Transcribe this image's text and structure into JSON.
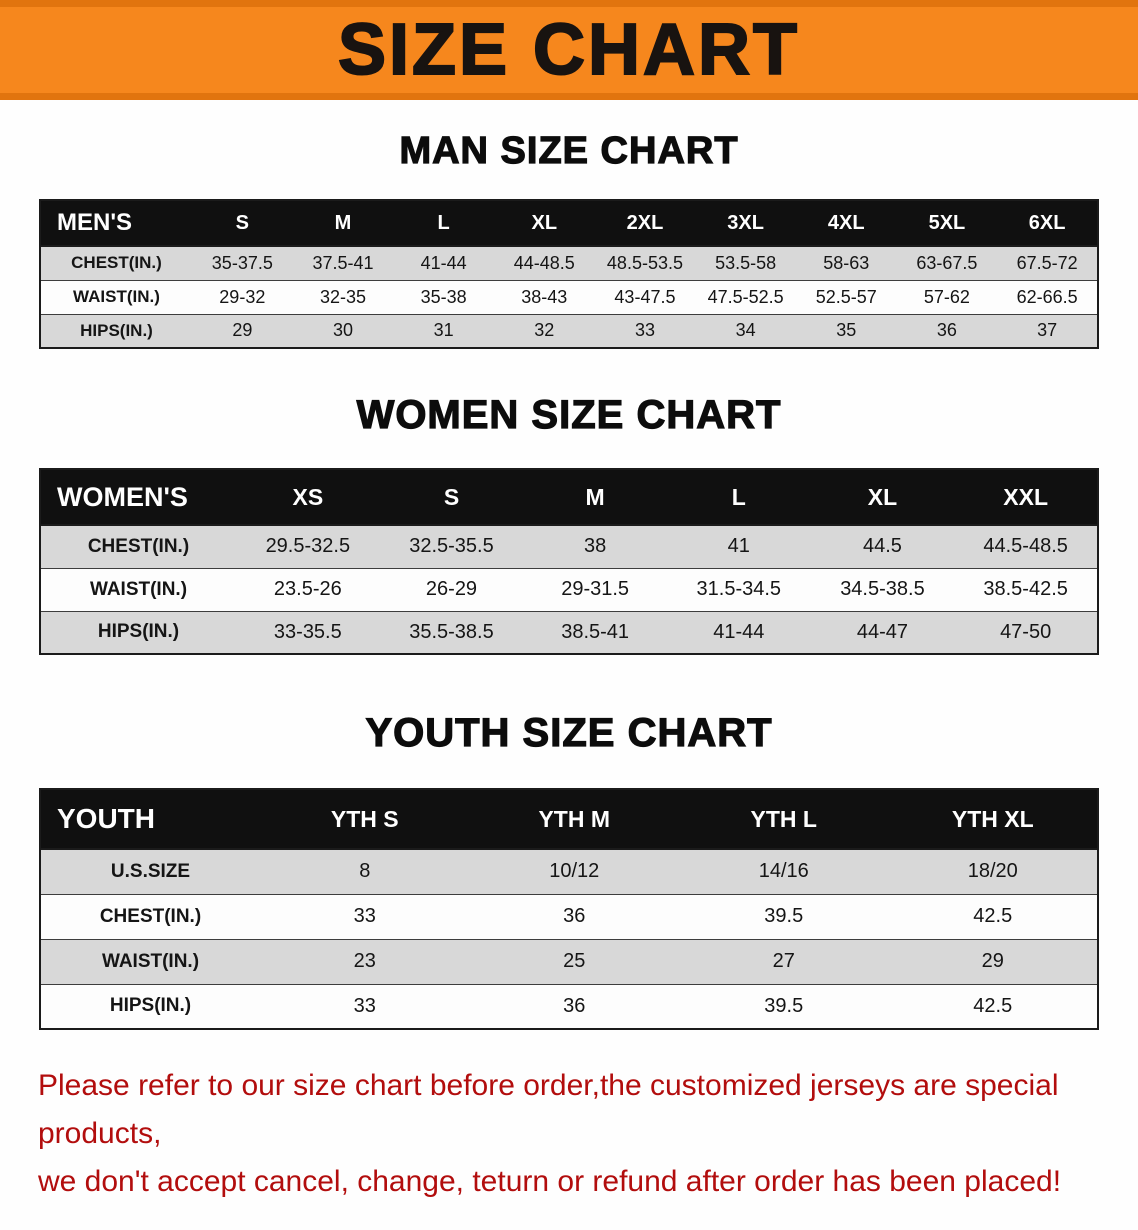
{
  "banner": {
    "title": "SIZE CHART"
  },
  "sections": [
    {
      "heading": "MAN SIZE CHART",
      "table": {
        "header": [
          "MEN'S",
          "S",
          "M",
          "L",
          "XL",
          "2XL",
          "3XL",
          "4XL",
          "5XL",
          "6XL"
        ],
        "rows": [
          [
            "CHEST(IN.)",
            "35-37.5",
            "37.5-41",
            "41-44",
            "44-48.5",
            "48.5-53.5",
            "53.5-58",
            "58-63",
            "63-67.5",
            "67.5-72"
          ],
          [
            "WAIST(IN.)",
            "29-32",
            "32-35",
            "35-38",
            "38-43",
            "43-47.5",
            "47.5-52.5",
            "52.5-57",
            "57-62",
            "62-66.5"
          ],
          [
            "HIPS(IN.)",
            "29",
            "30",
            "31",
            "32",
            "33",
            "34",
            "35",
            "36",
            "37"
          ]
        ]
      }
    },
    {
      "heading": "WOMEN SIZE CHART",
      "table": {
        "header": [
          "WOMEN'S",
          "XS",
          "S",
          "M",
          "L",
          "XL",
          "XXL"
        ],
        "rows": [
          [
            "CHEST(IN.)",
            "29.5-32.5",
            "32.5-35.5",
            "38",
            "41",
            "44.5",
            "44.5-48.5"
          ],
          [
            "WAIST(IN.)",
            "23.5-26",
            "26-29",
            "29-31.5",
            "31.5-34.5",
            "34.5-38.5",
            "38.5-42.5"
          ],
          [
            "HIPS(IN.)",
            "33-35.5",
            "35.5-38.5",
            "38.5-41",
            "41-44",
            "44-47",
            "47-50"
          ]
        ]
      }
    },
    {
      "heading": "YOUTH SIZE CHART",
      "table": {
        "header": [
          "YOUTH",
          "YTH S",
          "YTH M",
          "YTH L",
          "YTH XL"
        ],
        "rows": [
          [
            "U.S.SIZE",
            "8",
            "10/12",
            "14/16",
            "18/20"
          ],
          [
            "CHEST(IN.)",
            "33",
            "36",
            "39.5",
            "42.5"
          ],
          [
            "WAIST(IN.)",
            "23",
            "25",
            "27",
            "29"
          ],
          [
            "HIPS(IN.)",
            "33",
            "36",
            "39.5",
            "42.5"
          ]
        ]
      }
    }
  ],
  "footer": {
    "line1": "Please refer to our size chart before order,the customized jerseys are special products,",
    "line2": "we don't accept cancel, change, teturn or refund after order has been placed!"
  }
}
